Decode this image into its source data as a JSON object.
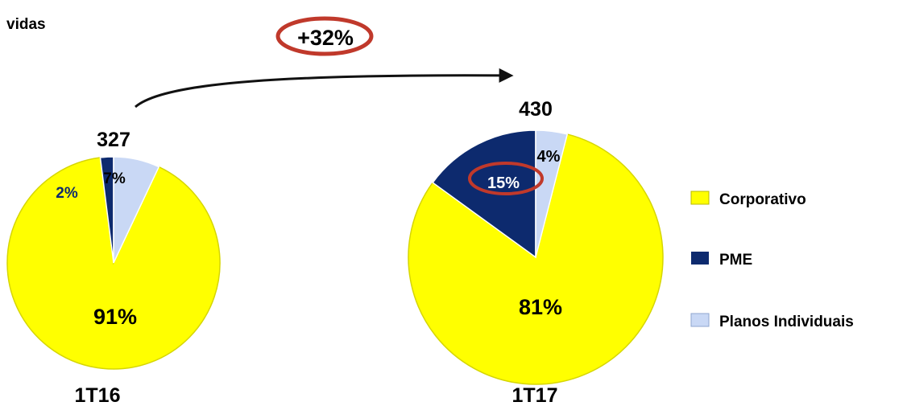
{
  "chart_data": {
    "type": "pie",
    "unit_label": "vidas",
    "growth_label": "+32%",
    "categories": [
      "Corporativo",
      "PME",
      "Planos Individuais"
    ],
    "colors": {
      "Corporativo": "#ffff00",
      "PME": "#0d2a6e",
      "Planos Individuais": "#c9d8f5",
      "highlight": "#c0392b"
    },
    "pies": [
      {
        "period": "1T16",
        "total": "327",
        "values": [
          91,
          2,
          7
        ],
        "labels": [
          "91%",
          "2%",
          "7%"
        ]
      },
      {
        "period": "1T17",
        "total": "430",
        "values": [
          81,
          15,
          4
        ],
        "labels": [
          "81%",
          "15%",
          "4%"
        ]
      }
    ],
    "legend": {
      "position": "right",
      "entries": [
        "Corporativo",
        "PME",
        "Planos Individuais"
      ]
    }
  }
}
